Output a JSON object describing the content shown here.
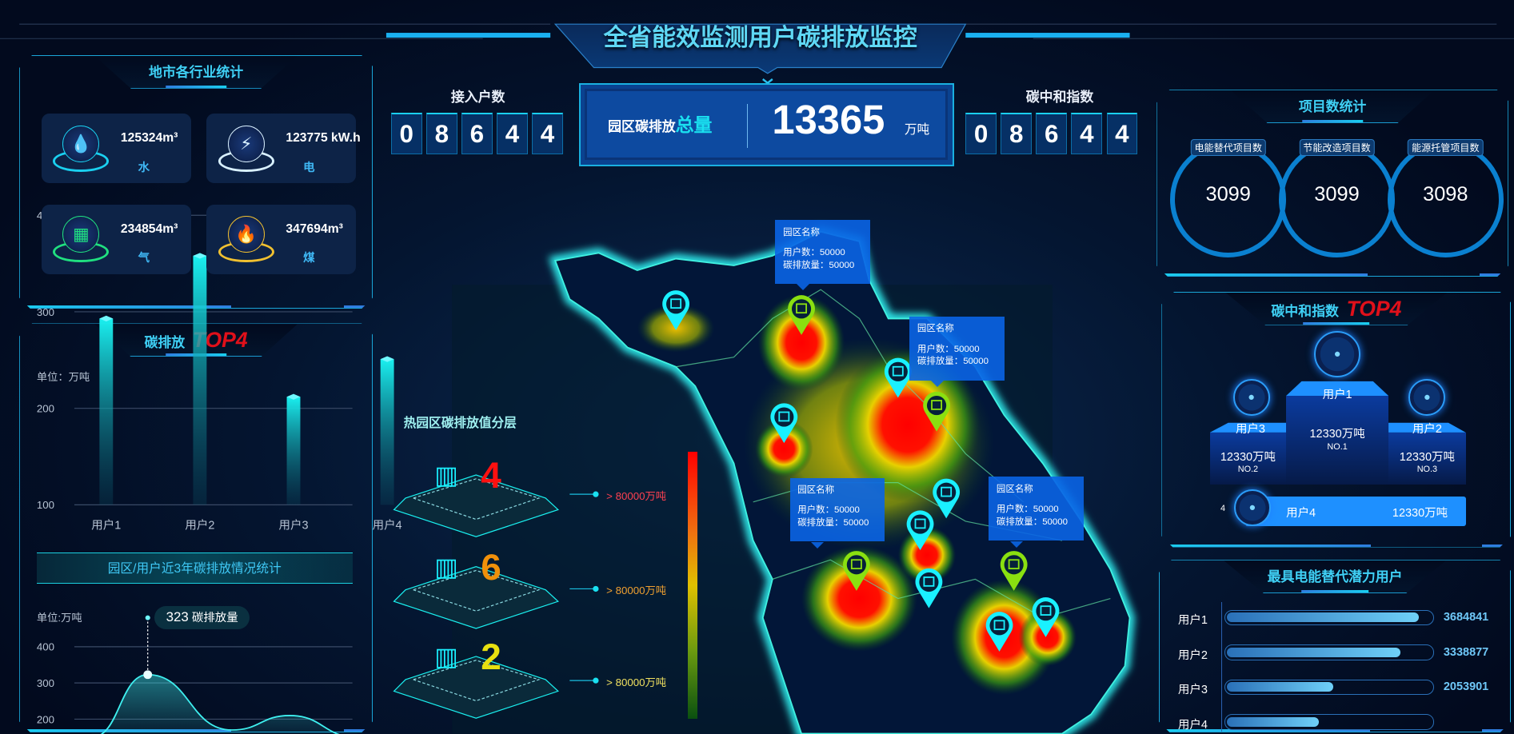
{
  "header": {
    "title": "全省能效监测用户碳排放监控"
  },
  "center": {
    "access_users": {
      "label": "接入户数",
      "digits": [
        "0",
        "8",
        "6",
        "4",
        "4"
      ]
    },
    "total": {
      "label": "园区碳排放",
      "label_highlight": "总量",
      "value": "13365",
      "unit": "万吨"
    },
    "carbon_neutral": {
      "label": "碳中和指数",
      "digits": [
        "0",
        "8",
        "6",
        "4",
        "4"
      ]
    }
  },
  "industry_stats": {
    "title": "地市各行业统计",
    "items": [
      {
        "value": "125324m³",
        "name": "水",
        "icon": "water-drop-icon",
        "color": "#1ad0f0"
      },
      {
        "value": "123775 kW.h",
        "name": "电",
        "icon": "lightning-icon",
        "color": "#d8f0ff"
      },
      {
        "value": "234854m³",
        "name": "气",
        "icon": "gas-icon",
        "color": "#20e080"
      },
      {
        "value": "347694m³",
        "name": "煤",
        "icon": "flame-icon",
        "color": "#f0c030"
      }
    ]
  },
  "emission_top4": {
    "title": "碳排放",
    "title_badge": "TOP4",
    "unit": "单位：万吨"
  },
  "trend": {
    "banner": "园区/用户近3年碳排放情况统计",
    "unit": "单位:万吨",
    "tooltip_value": "323",
    "tooltip_label": "碳排放量"
  },
  "layers": {
    "title": "热园区碳排放值分层",
    "items": [
      {
        "count": "4",
        "label": "> 80000万吨",
        "color": "#ff1010",
        "label_color": "#ff4050"
      },
      {
        "count": "6",
        "label": "> 80000万吨",
        "color": "#f0900a",
        "label_color": "#f0a030"
      },
      {
        "count": "2",
        "label": "> 80000万吨",
        "color": "#e8e010",
        "label_color": "#f0e060"
      }
    ]
  },
  "map": {
    "tooltips": [
      {
        "name": "园区名称",
        "users": "用户数：50000",
        "emission": "碳排放量：50000"
      },
      {
        "name": "园区名称",
        "users": "用户数：50000",
        "emission": "碳排放量：50000"
      },
      {
        "name": "园区名称",
        "users": "用户数：50000",
        "emission": "碳排放量：50000"
      },
      {
        "name": "园区名称",
        "users": "用户数：50000",
        "emission": "碳排放量：50000"
      }
    ]
  },
  "projects": {
    "title": "项目数统计",
    "items": [
      {
        "label": "电能替代项目数",
        "value": "3099"
      },
      {
        "label": "节能改造项目数",
        "value": "3099"
      },
      {
        "label": "能源托管项目数",
        "value": "3098"
      }
    ]
  },
  "neutral_top4": {
    "title": "碳中和指数",
    "title_badge": "TOP4",
    "items": [
      {
        "name": "用户1",
        "value": "12330万吨",
        "rank": "NO.1"
      },
      {
        "name": "用户2",
        "value": "12330万吨",
        "rank": "NO.3"
      },
      {
        "name": "用户3",
        "value": "12330万吨",
        "rank": "NO.2"
      },
      {
        "name": "用户4",
        "value": "12330万吨",
        "rank": "4"
      }
    ]
  },
  "potential": {
    "title": "最具电能替代潜力用户",
    "items": [
      {
        "name": "用户1",
        "value": "3684841",
        "fraction": 0.94
      },
      {
        "name": "用户2",
        "value": "3338877",
        "fraction": 0.85
      },
      {
        "name": "用户3",
        "value": "2053901",
        "fraction": 0.52
      },
      {
        "name": "用户4",
        "fraction": 0.45
      }
    ]
  },
  "chart_data": [
    {
      "type": "bar",
      "categories": [
        "用户1",
        "用户2",
        "用户3",
        "用户4"
      ],
      "values": [
        293,
        358,
        212,
        251
      ],
      "ylabel": "单位：万吨",
      "ylim": [
        100,
        400
      ],
      "yticks": [
        100,
        200,
        300,
        400
      ],
      "grid": true,
      "color": "#1ae0f0"
    },
    {
      "type": "area",
      "values": [
        150,
        323,
        170,
        210,
        150
      ],
      "ylabel": "单位:万吨",
      "ylim": [
        100,
        400
      ],
      "yticks": [
        200,
        300,
        400
      ],
      "grid": true,
      "color": "#3ff0f0",
      "highlight": {
        "value": 323,
        "label": "碳排放量"
      }
    }
  ]
}
